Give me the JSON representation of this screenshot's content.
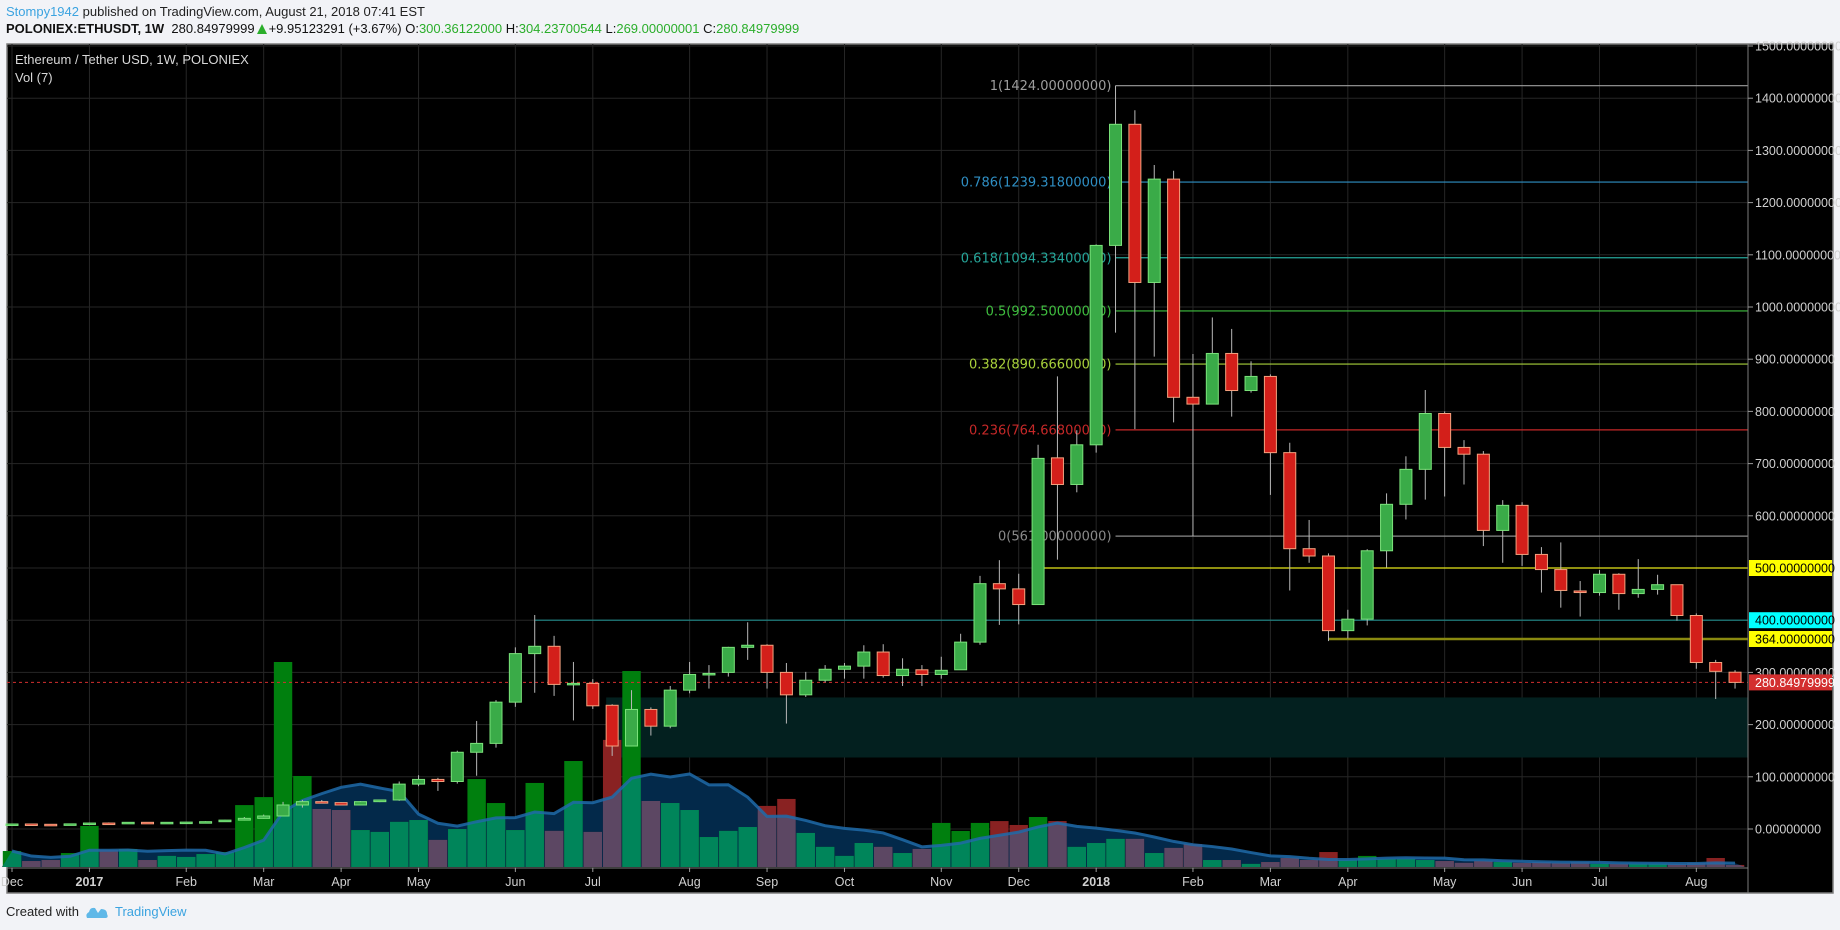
{
  "header": {
    "author": "Stompy1942",
    "published": "published on TradingView.com, August 21, 2018 07:41 EST",
    "symbol": "POLONIEX:ETHUSDT, 1W",
    "last": "280.84979999",
    "change": "+9.95123291 (+3.67%)",
    "o_label": "O:",
    "o": "300.36122000",
    "h_label": "H:",
    "h": "304.23700544",
    "l_label": "L:",
    "l": "269.00000001",
    "c_label": "C:",
    "c": "280.84979999",
    "change_icon": "triangle-up-icon"
  },
  "legend": {
    "title": "Ethereum / Tether USD, 1W, POLONIEX",
    "volume": "Vol (7)"
  },
  "footer": {
    "created": "Created with",
    "brand": "TradingView",
    "logo_icon": "tradingview-cloud-icon"
  },
  "colors": {
    "background": "#000000",
    "up_fill": "#3aab48",
    "up_border": "#7be37b",
    "down_fill": "#d31f1a",
    "down_border": "#f4a27f",
    "wick": "#b8b8b8",
    "vol_up": "#007f0e",
    "vol_down": "#892222",
    "vol_up_ma": "#00855a",
    "vol_down_ma": "#5c4763",
    "vol_ma_fill": "#03294a",
    "vol_ma_line": "#1f6aa8",
    "grid": "#262626",
    "last_price": "#d32f2f",
    "zone": "#03201f"
  },
  "chart_data": {
    "type": "candlestick",
    "interval": "1W",
    "y_axis": {
      "min": -70,
      "max": 1500,
      "position": "right",
      "ticks": [
        {
          "value": 1500,
          "label": "1500.00000000"
        },
        {
          "value": 1400,
          "label": "1400.00000000"
        },
        {
          "value": 1300,
          "label": "1300.00000000"
        },
        {
          "value": 1200,
          "label": "1200.00000000"
        },
        {
          "value": 1100,
          "label": "1100.00000000"
        },
        {
          "value": 1000,
          "label": "1000.00000000"
        },
        {
          "value": 900,
          "label": "900.00000000"
        },
        {
          "value": 800,
          "label": "800.00000000"
        },
        {
          "value": 700,
          "label": "700.00000000"
        },
        {
          "value": 600,
          "label": "600.00000000"
        },
        {
          "value": 300,
          "label": "300.00000000"
        },
        {
          "value": 200,
          "label": "200.00000000"
        },
        {
          "value": 100,
          "label": "100.00000000"
        },
        {
          "value": 0,
          "label": "0.00000000"
        }
      ]
    },
    "x_axis": {
      "ticks": [
        {
          "date": "2016-12-05",
          "label": "Dec"
        },
        {
          "date": "2017-01-02",
          "label": "2017"
        },
        {
          "date": "2017-02-06",
          "label": "Feb"
        },
        {
          "date": "2017-03-06",
          "label": "Mar"
        },
        {
          "date": "2017-04-03",
          "label": "Apr"
        },
        {
          "date": "2017-05-01",
          "label": "May"
        },
        {
          "date": "2017-06-05",
          "label": "Jun"
        },
        {
          "date": "2017-07-03",
          "label": "Jul"
        },
        {
          "date": "2017-08-07",
          "label": "Aug"
        },
        {
          "date": "2017-09-04",
          "label": "Sep"
        },
        {
          "date": "2017-10-02",
          "label": "Oct"
        },
        {
          "date": "2017-11-06",
          "label": "Nov"
        },
        {
          "date": "2017-12-04",
          "label": "Dec"
        },
        {
          "date": "2018-01-01",
          "label": "2018"
        },
        {
          "date": "2018-02-05",
          "label": "Feb"
        },
        {
          "date": "2018-03-05",
          "label": "Mar"
        },
        {
          "date": "2018-04-02",
          "label": "Apr"
        },
        {
          "date": "2018-05-07",
          "label": "May"
        },
        {
          "date": "2018-06-04",
          "label": "Jun"
        },
        {
          "date": "2018-07-02",
          "label": "Jul"
        },
        {
          "date": "2018-08-06",
          "label": "Aug"
        }
      ]
    },
    "grid": true,
    "volume_ma_length": 7,
    "columns": [
      "date",
      "open",
      "high",
      "low",
      "close",
      "volume_relative_pct"
    ],
    "candles": [
      [
        "2016-12-05",
        8.4,
        10.0,
        7.8,
        9.6,
        7.8
      ],
      [
        "2016-12-12",
        9.6,
        10.2,
        8.8,
        9.0,
        2.9
      ],
      [
        "2016-12-19",
        9.0,
        9.3,
        8.2,
        8.6,
        3.4
      ],
      [
        "2016-12-26",
        8.6,
        10.4,
        8.4,
        9.8,
        6.8
      ],
      [
        "2017-01-02",
        9.8,
        12.2,
        9.6,
        11.4,
        20.0
      ],
      [
        "2017-01-09",
        11.4,
        12.6,
        10.4,
        10.8,
        8.3
      ],
      [
        "2017-01-16",
        10.8,
        13.2,
        10.6,
        12.8,
        8.8
      ],
      [
        "2017-01-23",
        12.8,
        13.0,
        11.6,
        12.2,
        3.4
      ],
      [
        "2017-01-30",
        12.2,
        13.4,
        12.0,
        12.8,
        5.4
      ],
      [
        "2017-02-06",
        12.8,
        13.6,
        12.4,
        13.2,
        4.9
      ],
      [
        "2017-02-13",
        13.2,
        14.8,
        13.0,
        14.0,
        6.3
      ],
      [
        "2017-02-20",
        14.0,
        17.6,
        13.6,
        17.0,
        7.3
      ],
      [
        "2017-02-27",
        17.0,
        23.0,
        16.2,
        20.4,
        30.2
      ],
      [
        "2017-03-06",
        20.4,
        27.6,
        19.8,
        24.9,
        34.1
      ],
      [
        "2017-03-13",
        24.9,
        52.0,
        24.3,
        46.0,
        100
      ],
      [
        "2017-03-20",
        46.0,
        55.6,
        41.0,
        52.4,
        44.4
      ],
      [
        "2017-03-27",
        52.4,
        55.6,
        50.0,
        50.5,
        28.3
      ],
      [
        "2017-04-03",
        50.5,
        51.0,
        45.4,
        46.0,
        27.8
      ],
      [
        "2017-04-10",
        46.0,
        53.5,
        45.0,
        52.4,
        18.0
      ],
      [
        "2017-04-17",
        52.4,
        56.5,
        51.5,
        55.6,
        17.1
      ],
      [
        "2017-04-24",
        55.6,
        91.0,
        54.0,
        86.0,
        22.0
      ],
      [
        "2017-05-01",
        86.0,
        103.0,
        82.0,
        95.0,
        22.9
      ],
      [
        "2017-05-08",
        95.0,
        98.0,
        73.0,
        91.0,
        13.2
      ],
      [
        "2017-05-15",
        91.0,
        150.0,
        87.0,
        147.0,
        18.5
      ],
      [
        "2017-05-22",
        147,
        207,
        102,
        164,
        42.9
      ],
      [
        "2017-05-29",
        164,
        247,
        156,
        243,
        31.2
      ],
      [
        "2017-06-05",
        243,
        348,
        234,
        336,
        18.0
      ],
      [
        "2017-06-12",
        336,
        410,
        261,
        350,
        41.0
      ],
      [
        "2017-06-19",
        350,
        370,
        255,
        277,
        17.6
      ],
      [
        "2017-06-26",
        277,
        320,
        208,
        279,
        51.7
      ],
      [
        "2017-07-03",
        279,
        287,
        230,
        236,
        17.1
      ],
      [
        "2017-07-10",
        237,
        239,
        140,
        159,
        62.0
      ],
      [
        "2017-07-17",
        159,
        266,
        158,
        229,
        95.6
      ],
      [
        "2017-07-24",
        229,
        233,
        179,
        197,
        32.2
      ],
      [
        "2017-07-31",
        197,
        274,
        193,
        266,
        31.2
      ],
      [
        "2017-08-07",
        266,
        320,
        260,
        296,
        27.8
      ],
      [
        "2017-08-14",
        296,
        314,
        269,
        298,
        14.6
      ],
      [
        "2017-08-21",
        300,
        349,
        292,
        348,
        17.6
      ],
      [
        "2017-08-28",
        348,
        396,
        324,
        352,
        19.5
      ],
      [
        "2017-09-04",
        352,
        354,
        269,
        300,
        29.8
      ],
      [
        "2017-09-11",
        300,
        318,
        202,
        257,
        33.2
      ],
      [
        "2017-09-18",
        257,
        301,
        253,
        285,
        16.6
      ],
      [
        "2017-09-25",
        285,
        314,
        281,
        306,
        9.8
      ],
      [
        "2017-10-02",
        306,
        318,
        288,
        312,
        5.4
      ],
      [
        "2017-10-09",
        312,
        352,
        288,
        339,
        11.7
      ],
      [
        "2017-10-16",
        339,
        354,
        290,
        294,
        9.8
      ],
      [
        "2017-10-23",
        294,
        327,
        274,
        306,
        6.8
      ],
      [
        "2017-10-30",
        305,
        314,
        274,
        296,
        8.8
      ],
      [
        "2017-11-06",
        296,
        330,
        288,
        304,
        21.5
      ],
      [
        "2017-11-13",
        305,
        374,
        305,
        358,
        17.6
      ],
      [
        "2017-11-20",
        358,
        485,
        353,
        470,
        21.5
      ],
      [
        "2017-11-27",
        470,
        515,
        391,
        460,
        22.4
      ],
      [
        "2017-12-04",
        460,
        489,
        392,
        430,
        20.5
      ],
      [
        "2017-12-11",
        430,
        736,
        430,
        710,
        24.4
      ],
      [
        "2017-12-18",
        711,
        867,
        516,
        660,
        22.4
      ],
      [
        "2017-12-25",
        660,
        764,
        645,
        736,
        9.8
      ],
      [
        "2018-01-01",
        736,
        1120,
        721,
        1118,
        11.7
      ],
      [
        "2018-01-08",
        1118,
        1424,
        951,
        1350,
        13.7
      ],
      [
        "2018-01-15",
        1350,
        1377,
        766,
        1047,
        13.7
      ],
      [
        "2018-01-22",
        1047,
        1272,
        905,
        1245,
        6.8
      ],
      [
        "2018-01-29",
        1245,
        1261,
        779,
        827,
        9.3
      ],
      [
        "2018-02-05",
        827,
        910,
        561,
        814,
        11.2
      ],
      [
        "2018-02-12",
        814,
        980,
        814,
        911,
        3.4
      ],
      [
        "2018-02-19",
        911,
        958,
        790,
        840,
        3.4
      ],
      [
        "2018-02-26",
        840,
        896,
        836,
        867,
        1.5
      ],
      [
        "2018-03-05",
        867,
        871,
        640,
        721,
        2.4
      ],
      [
        "2018-03-12",
        721,
        740,
        457,
        537,
        4.4
      ],
      [
        "2018-03-19",
        537,
        592,
        510,
        523,
        3.4
      ],
      [
        "2018-03-26",
        523,
        528,
        360,
        380,
        7.3
      ],
      [
        "2018-04-02",
        380,
        420,
        365,
        402,
        3.4
      ],
      [
        "2018-04-09",
        402,
        536,
        390,
        533,
        5.4
      ],
      [
        "2018-04-16",
        533,
        643,
        501,
        622,
        3.9
      ],
      [
        "2018-04-23",
        622,
        714,
        593,
        689,
        3.9
      ],
      [
        "2018-04-30",
        689,
        841,
        631,
        796,
        3.4
      ],
      [
        "2018-05-07",
        796,
        800,
        637,
        731,
        2.9
      ],
      [
        "2018-05-14",
        731,
        745,
        660,
        718,
        2.0
      ],
      [
        "2018-05-21",
        718,
        724,
        542,
        572,
        2.9
      ],
      [
        "2018-05-28",
        572,
        630,
        510,
        620,
        2.4
      ],
      [
        "2018-06-04",
        620,
        626,
        504,
        526,
        2.0
      ],
      [
        "2018-06-11",
        526,
        540,
        453,
        497,
        2.4
      ],
      [
        "2018-06-18",
        497,
        549,
        424,
        457,
        2.0
      ],
      [
        "2018-06-25",
        456,
        475,
        407,
        453,
        2.4
      ],
      [
        "2018-07-02",
        453,
        496,
        447,
        488,
        1.5
      ],
      [
        "2018-07-09",
        488,
        490,
        420,
        451,
        1.5
      ],
      [
        "2018-07-16",
        451,
        517,
        443,
        459,
        1.5
      ],
      [
        "2018-07-23",
        459,
        487,
        449,
        468,
        1.5
      ],
      [
        "2018-07-30",
        468,
        468,
        399,
        409,
        1.5
      ],
      [
        "2018-08-06",
        409,
        413,
        307,
        319,
        2.0
      ],
      [
        "2018-08-13",
        319,
        324,
        249,
        302,
        4.4
      ],
      [
        "2018-08-20",
        300.36122,
        304.23700544,
        269.00000001,
        280.84979999,
        1.0
      ]
    ],
    "fibonacci": {
      "from_date": "2018-01-08",
      "levels": [
        {
          "ratio": 1,
          "price": 1424,
          "label": "1(1424.00000000)",
          "color": "#9e9e9e"
        },
        {
          "ratio": 0.786,
          "price": 1239.318,
          "label": "0.786(1239.31800000)",
          "color": "#2f8fc4"
        },
        {
          "ratio": 0.618,
          "price": 1094.334,
          "label": "0.618(1094.33400000)",
          "color": "#26a69a"
        },
        {
          "ratio": 0.5,
          "price": 992.5,
          "label": "0.5(992.50000000)",
          "color": "#3fbf3f"
        },
        {
          "ratio": 0.382,
          "price": 890.666,
          "label": "0.382(890.66600000)",
          "color": "#a8d13b"
        },
        {
          "ratio": 0.236,
          "price": 764.668,
          "label": "0.236(764.66800000)",
          "color": "#c62828"
        },
        {
          "ratio": 0,
          "price": 561,
          "label": "0(561.00000000)",
          "color": "#8a8a8a"
        }
      ]
    },
    "horizontal_lines": [
      {
        "price": 500,
        "from_date": "2017-12-11",
        "color": "#e6e619",
        "label": "500.00000000",
        "label_bg": "#ffff00",
        "label_fg": "#000000"
      },
      {
        "price": 400,
        "from_date": "2017-06-12",
        "color": "#1f8a8a",
        "label": "400.00000000",
        "label_bg": "#00ffff",
        "label_fg": "#000000"
      },
      {
        "price": 364,
        "from_date": "2018-03-26",
        "color": "#8a8a10",
        "label": "364.00000000",
        "label_bg": "#ffff00",
        "label_fg": "#000000"
      }
    ],
    "last_price": {
      "price": 280.84979999,
      "label": "280.84979999",
      "label_bg": "#d32f2f",
      "label_fg": "#ffffff"
    },
    "zone": {
      "from_date": "2017-07-10",
      "low": 137,
      "high": 252
    }
  }
}
